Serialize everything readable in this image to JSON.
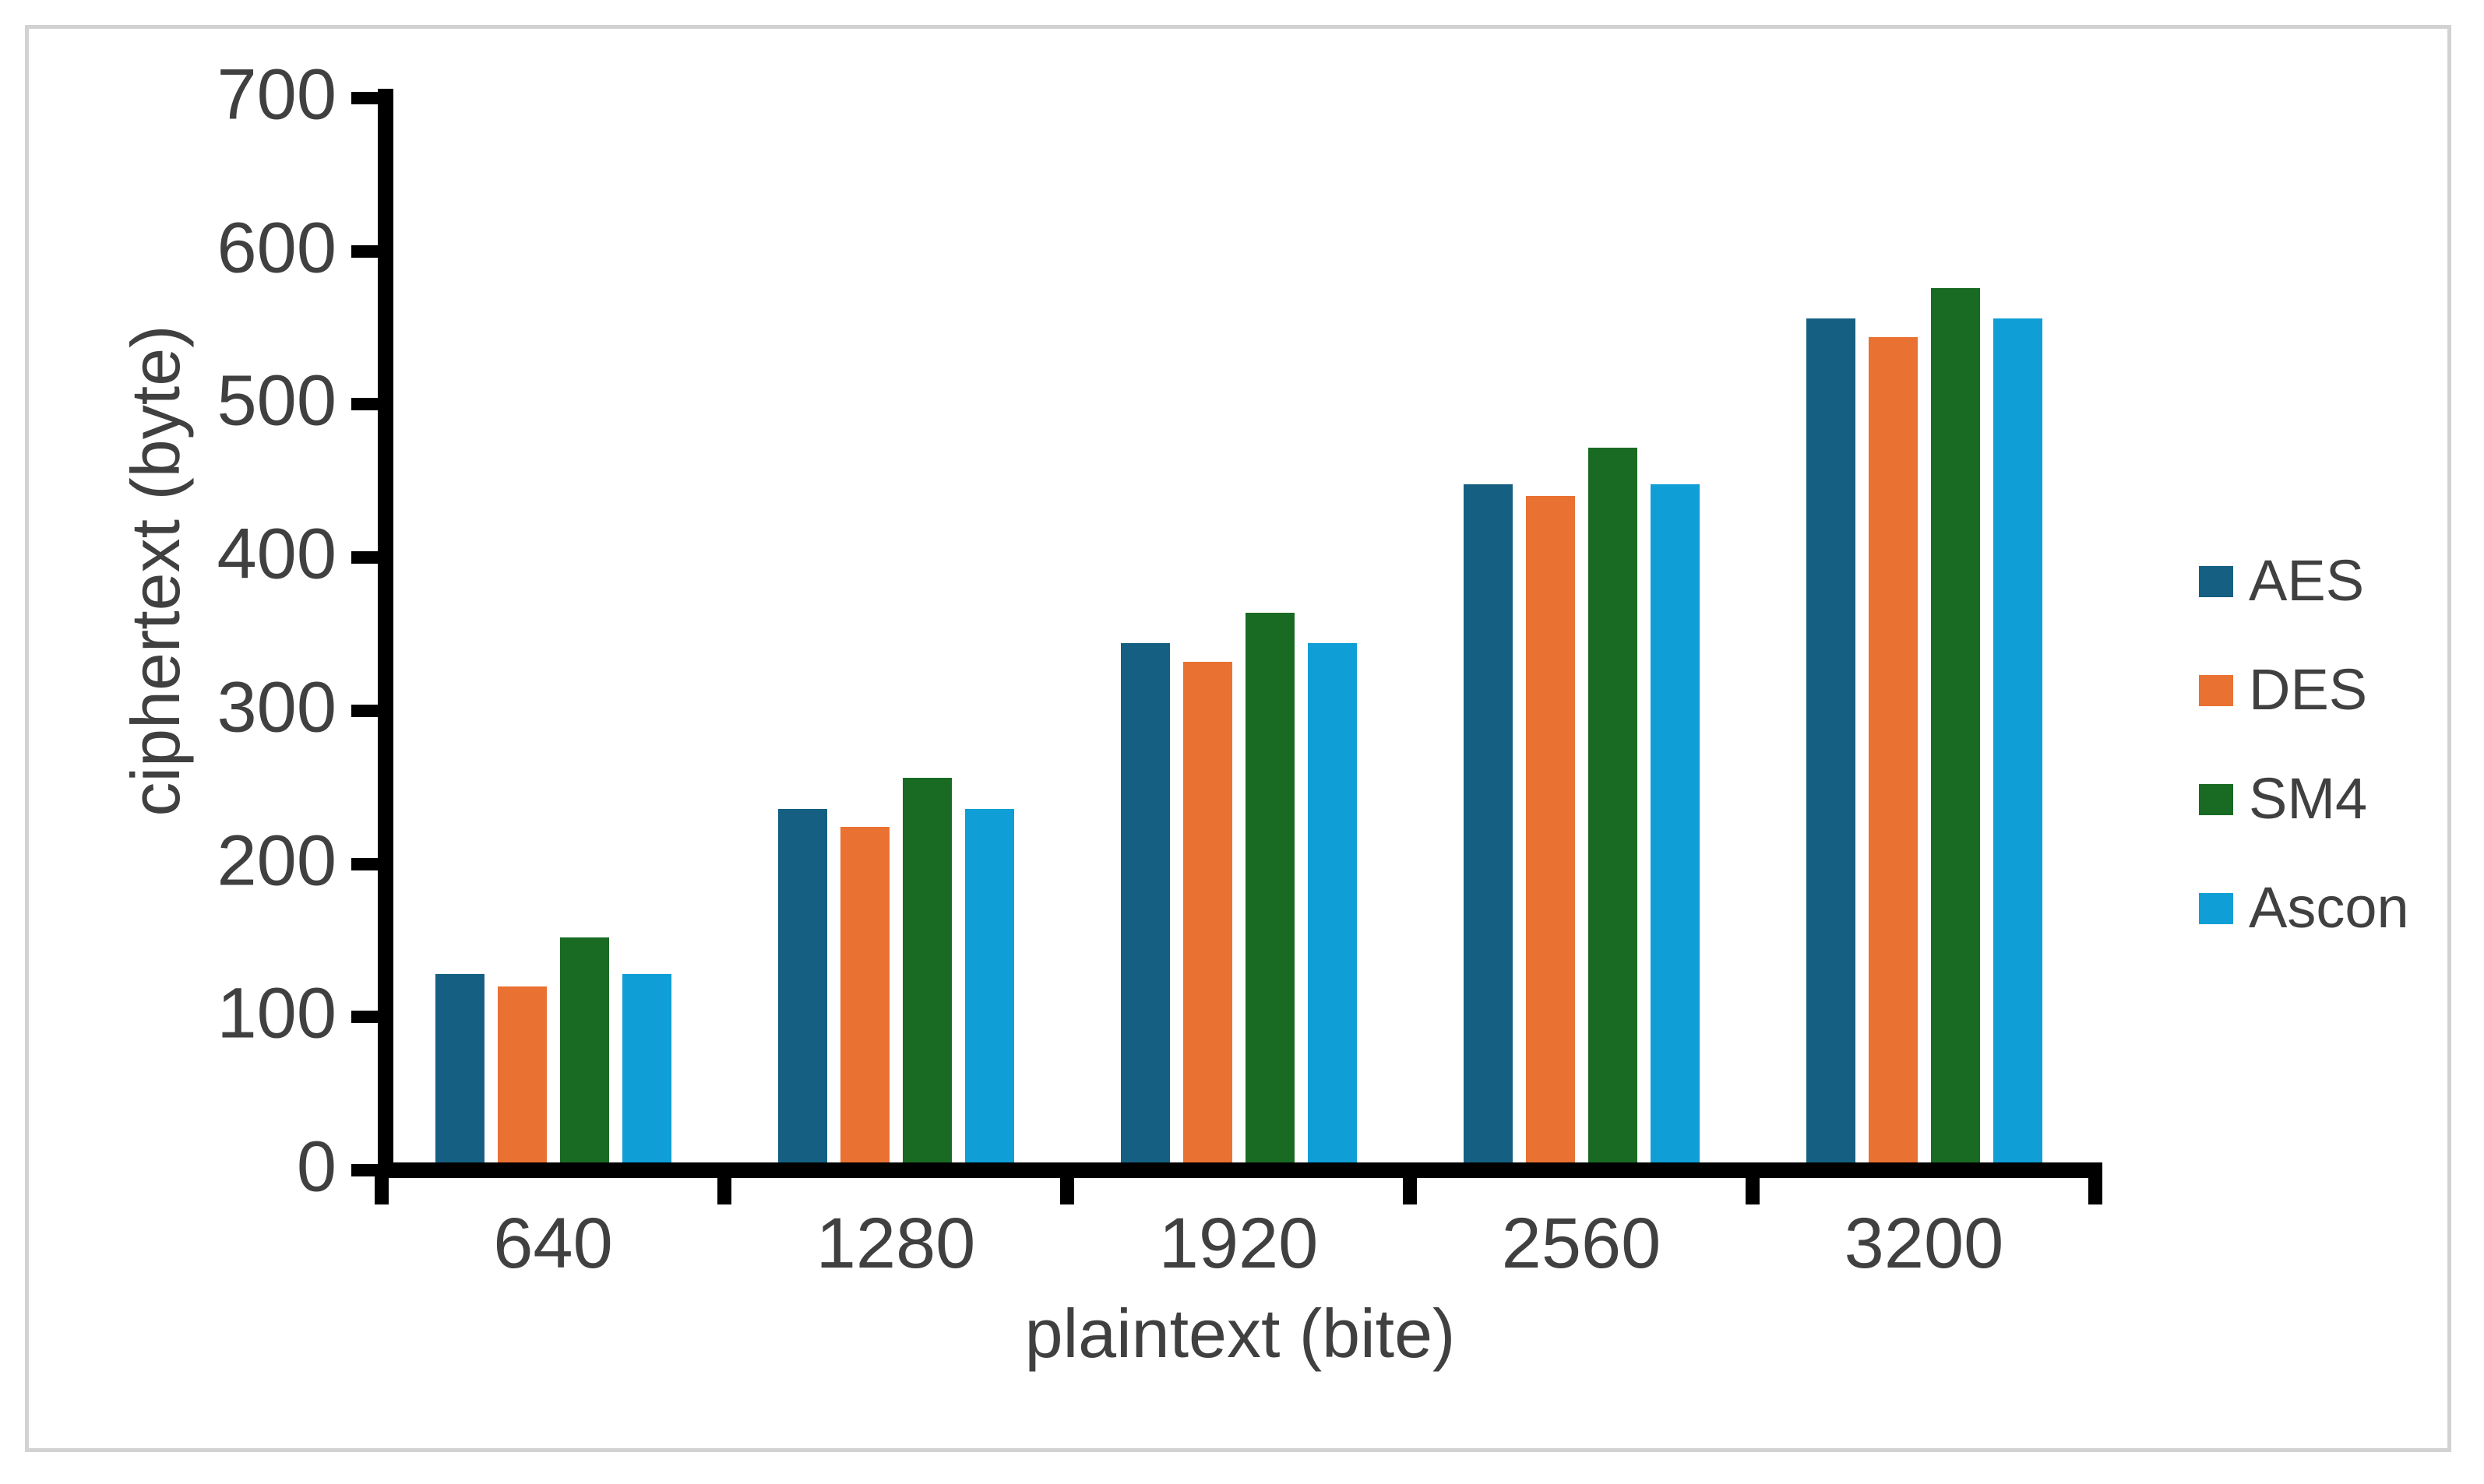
{
  "chart_data": {
    "type": "bar",
    "categories": [
      "640",
      "1280",
      "1920",
      "2560",
      "3200"
    ],
    "series": [
      {
        "name": "AES",
        "color": "#156082",
        "values": [
          128,
          236,
          344,
          448,
          556
        ]
      },
      {
        "name": "DES",
        "color": "#E97132",
        "values": [
          120,
          224,
          332,
          440,
          544
        ]
      },
      {
        "name": "SM4",
        "color": "#196B24",
        "values": [
          152,
          256,
          364,
          472,
          576
        ]
      },
      {
        "name": "Ascon",
        "color": "#0F9ED5",
        "values": [
          128,
          236,
          344,
          448,
          556
        ]
      }
    ],
    "xlabel": "plaintext (bite)",
    "ylabel": "ciphertext (byte)",
    "ylim": [
      0,
      700
    ],
    "yticks": [
      0,
      100,
      200,
      300,
      400,
      500,
      600,
      700
    ],
    "grid": false,
    "legend_position": "right",
    "legend_labels": [
      "AES",
      "DES",
      "SM4",
      "Ascon"
    ]
  },
  "colors": {
    "background": "#FFFFFF",
    "axis": "#000000",
    "text": "#404040",
    "page_border": "#D2D2D2"
  }
}
